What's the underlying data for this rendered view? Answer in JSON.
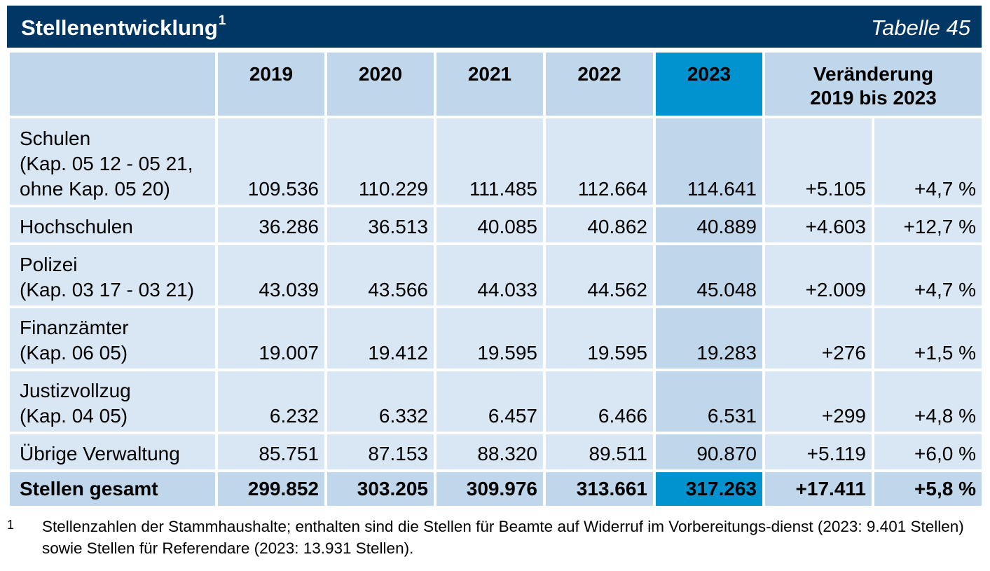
{
  "header": {
    "title": "Stellenentwicklung",
    "title_footnote_mark": "1",
    "table_number": "Tabelle 45"
  },
  "columns": {
    "years": [
      "2019",
      "2020",
      "2021",
      "2022",
      "2023"
    ],
    "change_line1": "Veränderung",
    "change_line2": "2019 bis 2023"
  },
  "rows": [
    {
      "label_lines": [
        "Schulen",
        "(Kap. 05 12 - 05 21,",
        "ohne Kap. 05 20)"
      ],
      "values": [
        "109.536",
        "110.229",
        "111.485",
        "112.664",
        "114.641"
      ],
      "change_abs": "+5.105",
      "change_pct": "+4,7 %"
    },
    {
      "label_lines": [
        "Hochschulen"
      ],
      "values": [
        "36.286",
        "36.513",
        "40.085",
        "40.862",
        "40.889"
      ],
      "change_abs": "+4.603",
      "change_pct": "+12,7 %"
    },
    {
      "label_lines": [
        "Polizei",
        "(Kap. 03 17 - 03 21)"
      ],
      "values": [
        "43.039",
        "43.566",
        "44.033",
        "44.562",
        "45.048"
      ],
      "change_abs": "+2.009",
      "change_pct": "+4,7 %"
    },
    {
      "label_lines": [
        "Finanzämter",
        "(Kap. 06 05)"
      ],
      "values": [
        "19.007",
        "19.412",
        "19.595",
        "19.595",
        "19.283"
      ],
      "change_abs": "+276",
      "change_pct": "+1,5 %"
    },
    {
      "label_lines": [
        "Justizvollzug",
        "(Kap. 04 05)"
      ],
      "values": [
        "6.232",
        "6.332",
        "6.457",
        "6.466",
        "6.531"
      ],
      "change_abs": "+299",
      "change_pct": "+4,8 %"
    },
    {
      "label_lines": [
        "Übrige Verwaltung"
      ],
      "values": [
        "85.751",
        "87.153",
        "88.320",
        "89.511",
        "90.870"
      ],
      "change_abs": "+5.119",
      "change_pct": "+6,0 %"
    }
  ],
  "total": {
    "label": "Stellen gesamt",
    "values": [
      "299.852",
      "303.205",
      "309.976",
      "313.661",
      "317.263"
    ],
    "change_abs": "+17.411",
    "change_pct": "+5,8 %"
  },
  "footnote": {
    "mark": "1",
    "text": "Stellenzahlen der Stammhaushalte; enthalten sind die Stellen für Beamte auf Widerruf im Vorbereitungs-dienst (2023: 9.401 Stellen) sowie Stellen für Referendare (2023: 13.931 Stellen)."
  },
  "colors": {
    "title_bar": "#003764",
    "header_cell": "#c0d6ea",
    "highlight_header": "#0093d0",
    "body_cell": "#d9e6f3",
    "highlight_body": "#c0d6ea"
  }
}
